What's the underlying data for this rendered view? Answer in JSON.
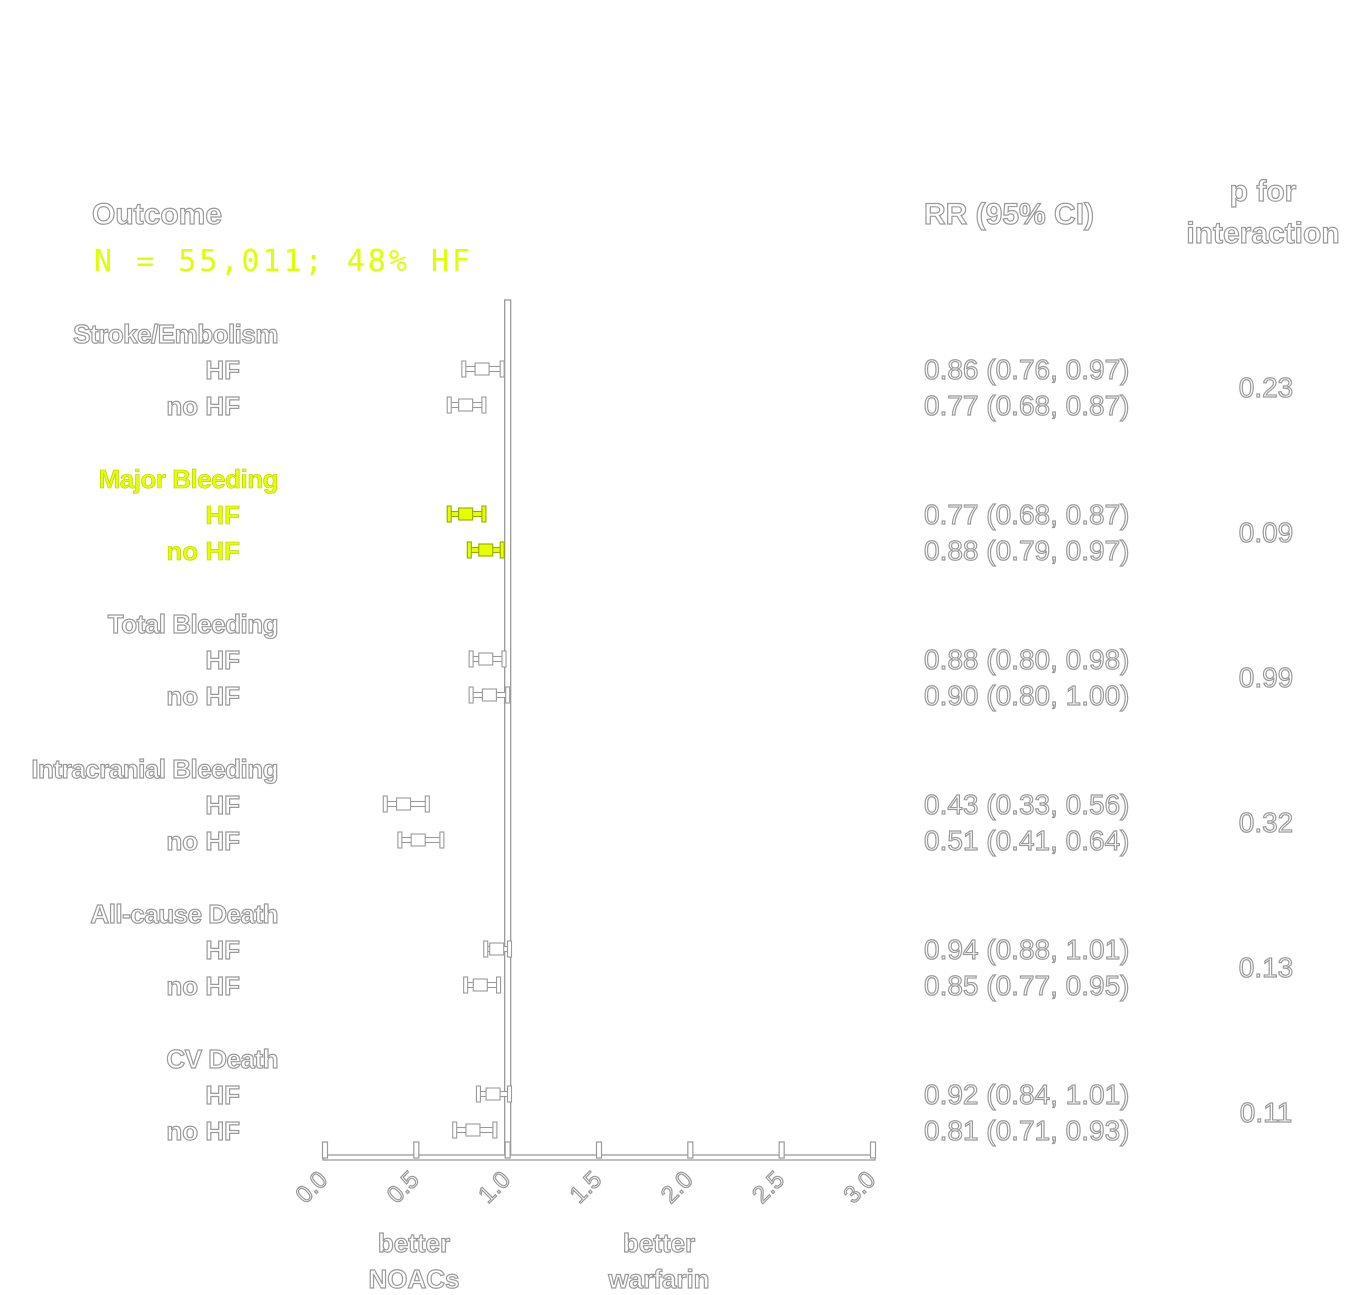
{
  "header": {
    "outcome_label": "Outcome",
    "subtitle": "N = 55,011; 48% HF",
    "rr_header": "RR (95% CI)",
    "p_header_line1": "p for",
    "p_header_line2": "interaction"
  },
  "colors": {
    "outline": "#9a9a9a",
    "highlight": "#e6ff00",
    "fill": "#ffffff"
  },
  "chart_data": {
    "type": "forest",
    "xlim": [
      0,
      3
    ],
    "ticks": [
      "0.0",
      "0.5",
      "1.0",
      "1.5",
      "2.0",
      "2.5",
      "3.0"
    ],
    "reference_line": 1.0,
    "direction_labels": {
      "left_line1": "better",
      "left_line2": "NOACs",
      "right_line1": "better",
      "right_line2": "warfarin"
    },
    "highlighted_group": "Major Bleeding",
    "groups": [
      {
        "name": "Stroke/Embolism",
        "p_interaction": "0.23",
        "rows": [
          {
            "label": "HF",
            "rr": 0.86,
            "lo": 0.76,
            "hi": 0.97,
            "text": "0.86 (0.76, 0.97)"
          },
          {
            "label": "no HF",
            "rr": 0.77,
            "lo": 0.68,
            "hi": 0.87,
            "text": "0.77 (0.68, 0.87)"
          }
        ]
      },
      {
        "name": "Major Bleeding",
        "p_interaction": "0.09",
        "rows": [
          {
            "label": "HF",
            "rr": 0.77,
            "lo": 0.68,
            "hi": 0.87,
            "text": "0.77 (0.68, 0.87)"
          },
          {
            "label": "no HF",
            "rr": 0.88,
            "lo": 0.79,
            "hi": 0.97,
            "text": "0.88 (0.79, 0.97)"
          }
        ]
      },
      {
        "name": "Total Bleeding",
        "p_interaction": "0.99",
        "rows": [
          {
            "label": "HF",
            "rr": 0.88,
            "lo": 0.8,
            "hi": 0.98,
            "text": "0.88 (0.80, 0.98)"
          },
          {
            "label": "no HF",
            "rr": 0.9,
            "lo": 0.8,
            "hi": 1.0,
            "text": "0.90 (0.80, 1.00)"
          }
        ]
      },
      {
        "name": "Intracranial Bleeding",
        "p_interaction": "0.32",
        "rows": [
          {
            "label": "HF",
            "rr": 0.43,
            "lo": 0.33,
            "hi": 0.56,
            "text": "0.43 (0.33, 0.56)"
          },
          {
            "label": "no HF",
            "rr": 0.51,
            "lo": 0.41,
            "hi": 0.64,
            "text": "0.51 (0.41, 0.64)"
          }
        ]
      },
      {
        "name": "All-cause Death",
        "p_interaction": "0.13",
        "rows": [
          {
            "label": "HF",
            "rr": 0.94,
            "lo": 0.88,
            "hi": 1.01,
            "text": "0.94 (0.88, 1.01)"
          },
          {
            "label": "no HF",
            "rr": 0.85,
            "lo": 0.77,
            "hi": 0.95,
            "text": "0.85 (0.77, 0.95)"
          }
        ]
      },
      {
        "name": "CV Death",
        "p_interaction": "0.11",
        "rows": [
          {
            "label": "HF",
            "rr": 0.92,
            "lo": 0.84,
            "hi": 1.01,
            "text": "0.92 (0.84, 1.01)"
          },
          {
            "label": "no HF",
            "rr": 0.81,
            "lo": 0.71,
            "hi": 0.93,
            "text": "0.81 (0.71, 0.93)"
          }
        ]
      }
    ]
  }
}
